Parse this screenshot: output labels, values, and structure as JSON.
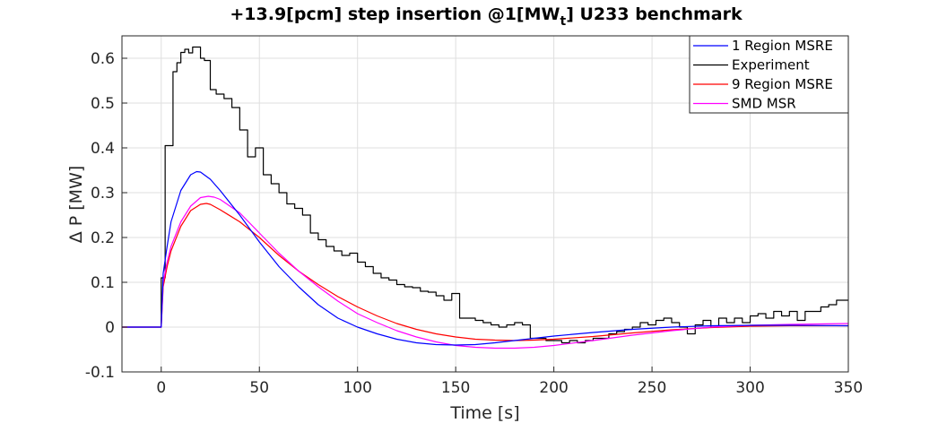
{
  "chart_data": {
    "type": "line",
    "title": {
      "main": "+13.9[pcm] step insertion @1[MW",
      "subscript": "t",
      "suffix": "] U233 benchmark"
    },
    "xlabel": "Time [s]",
    "ylabel": "Δ P [MW]",
    "xlim": [
      -20,
      350
    ],
    "ylim": [
      -0.1,
      0.65
    ],
    "xticks": [
      0,
      50,
      100,
      150,
      200,
      250,
      300,
      350
    ],
    "yticks": [
      -0.1,
      0,
      0.1,
      0.2,
      0.3,
      0.4,
      0.5,
      0.6
    ],
    "ytick_labels": [
      "-0.1",
      "0",
      "0.1",
      "0.2",
      "0.3",
      "0.4",
      "0.5",
      "0.6"
    ],
    "grid": true,
    "legend_position": "top-right",
    "series": [
      {
        "name": "1 Region MSRE",
        "color": "#0000ff",
        "style": "line",
        "x": [
          -20,
          0,
          1,
          3,
          5,
          10,
          15,
          18,
          20,
          25,
          30,
          40,
          50,
          60,
          70,
          80,
          90,
          100,
          110,
          120,
          130,
          140,
          150,
          160,
          170,
          180,
          190,
          200,
          220,
          240,
          260,
          280,
          300,
          320,
          350
        ],
        "y": [
          0,
          0,
          0.12,
          0.18,
          0.235,
          0.305,
          0.34,
          0.347,
          0.346,
          0.33,
          0.305,
          0.25,
          0.19,
          0.135,
          0.09,
          0.05,
          0.02,
          0.0,
          -0.015,
          -0.027,
          -0.035,
          -0.039,
          -0.04,
          -0.039,
          -0.035,
          -0.03,
          -0.025,
          -0.02,
          -0.012,
          -0.005,
          0.0,
          0.003,
          0.004,
          0.004,
          0.003
        ]
      },
      {
        "name": "Experiment",
        "color": "#000000",
        "style": "step",
        "x": [
          -20,
          0,
          2,
          4,
          6,
          8,
          10,
          12,
          14,
          16,
          18,
          20,
          22,
          25,
          28,
          32,
          36,
          40,
          44,
          48,
          52,
          56,
          60,
          64,
          68,
          72,
          76,
          80,
          84,
          88,
          92,
          96,
          100,
          104,
          108,
          112,
          116,
          120,
          124,
          128,
          132,
          136,
          140,
          144,
          148,
          152,
          156,
          160,
          164,
          168,
          172,
          176,
          180,
          184,
          188,
          192,
          196,
          200,
          204,
          208,
          212,
          216,
          220,
          224,
          228,
          232,
          236,
          240,
          244,
          248,
          252,
          256,
          260,
          264,
          268,
          272,
          276,
          280,
          284,
          288,
          292,
          296,
          300,
          304,
          308,
          312,
          316,
          320,
          324,
          328,
          332,
          336,
          340,
          344,
          350
        ],
        "y": [
          0,
          0.11,
          0.405,
          0.405,
          0.57,
          0.59,
          0.613,
          0.62,
          0.612,
          0.625,
          0.625,
          0.6,
          0.595,
          0.53,
          0.52,
          0.51,
          0.49,
          0.44,
          0.38,
          0.4,
          0.34,
          0.32,
          0.3,
          0.275,
          0.265,
          0.25,
          0.21,
          0.195,
          0.18,
          0.17,
          0.16,
          0.165,
          0.145,
          0.135,
          0.12,
          0.11,
          0.105,
          0.095,
          0.09,
          0.088,
          0.08,
          0.078,
          0.07,
          0.06,
          0.075,
          0.02,
          0.02,
          0.015,
          0.01,
          0.005,
          0.0,
          0.005,
          0.01,
          0.005,
          -0.025,
          -0.025,
          -0.03,
          -0.03,
          -0.035,
          -0.03,
          -0.035,
          -0.03,
          -0.025,
          -0.025,
          -0.015,
          -0.01,
          -0.005,
          0.0,
          0.01,
          0.005,
          0.015,
          0.02,
          0.01,
          0.0,
          -0.015,
          0.005,
          0.015,
          0.0,
          0.02,
          0.01,
          0.02,
          0.01,
          0.025,
          0.03,
          0.02,
          0.035,
          0.025,
          0.035,
          0.015,
          0.035,
          0.035,
          0.045,
          0.05,
          0.06,
          0.06
        ]
      },
      {
        "name": "9 Region MSRE",
        "color": "#ff0000",
        "style": "line",
        "x": [
          -20,
          0,
          1,
          3,
          5,
          10,
          15,
          20,
          23,
          25,
          30,
          40,
          50,
          60,
          70,
          80,
          90,
          100,
          110,
          120,
          130,
          140,
          150,
          160,
          170,
          180,
          190,
          200,
          220,
          240,
          260,
          280,
          300,
          320,
          350
        ],
        "y": [
          0,
          0,
          0.09,
          0.135,
          0.17,
          0.225,
          0.26,
          0.274,
          0.276,
          0.274,
          0.262,
          0.235,
          0.2,
          0.16,
          0.125,
          0.095,
          0.068,
          0.045,
          0.025,
          0.008,
          -0.005,
          -0.015,
          -0.022,
          -0.027,
          -0.029,
          -0.03,
          -0.029,
          -0.027,
          -0.021,
          -0.013,
          -0.006,
          -0.001,
          0.002,
          0.003,
          0.003
        ]
      },
      {
        "name": "SMD MSR",
        "color": "#ff00ff",
        "style": "line",
        "x": [
          -20,
          0,
          1,
          3,
          5,
          10,
          15,
          20,
          24,
          27,
          30,
          40,
          50,
          60,
          70,
          80,
          90,
          100,
          110,
          120,
          130,
          140,
          150,
          160,
          170,
          180,
          190,
          200,
          220,
          240,
          260,
          280,
          300,
          320,
          350
        ],
        "y": [
          0,
          0,
          0.1,
          0.145,
          0.18,
          0.235,
          0.27,
          0.289,
          0.292,
          0.29,
          0.285,
          0.255,
          0.21,
          0.165,
          0.125,
          0.09,
          0.058,
          0.03,
          0.01,
          -0.008,
          -0.022,
          -0.033,
          -0.041,
          -0.045,
          -0.047,
          -0.047,
          -0.045,
          -0.041,
          -0.03,
          -0.018,
          -0.008,
          0.0,
          0.004,
          0.006,
          0.008
        ]
      }
    ]
  }
}
